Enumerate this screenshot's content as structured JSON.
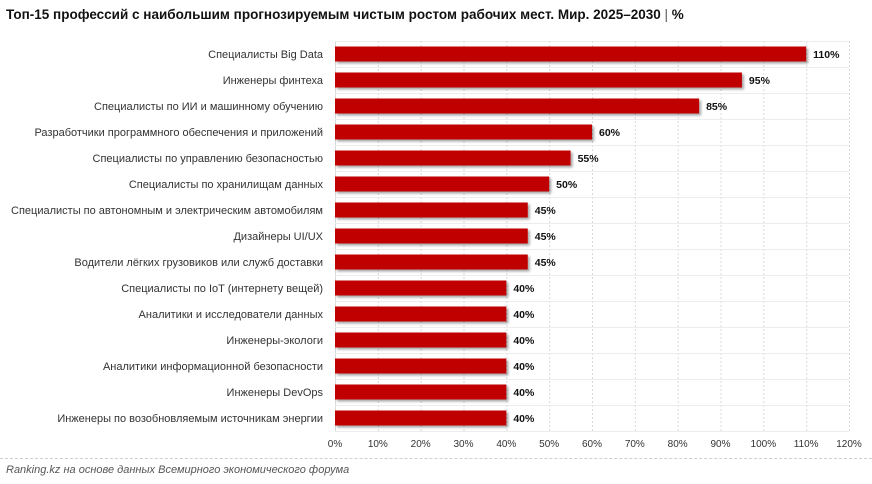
{
  "title": {
    "main": "Топ-15 профессий с наибольшим прогнозируемым чистым ростом рабочих мест. Мир. 2025–2030",
    "separator": "|",
    "unit": "%"
  },
  "source": "Ranking.kz на основе данных Всемирного экономического форума",
  "colors": {
    "bar": "#c00000",
    "grid": "#d9d9d9",
    "label": "#333333"
  },
  "chart_data": {
    "type": "bar",
    "orientation": "horizontal",
    "categories": [
      "Специалисты Big Data",
      "Инженеры финтеха",
      "Специалисты по ИИ и машинному обучению",
      "Разработчики программного обеспечения и приложений",
      "Специалисты по управлению безопасностью",
      "Специалисты по хранилищам данных",
      "Специалисты по автономным и электрическим автомобилям",
      "Дизайнеры UI/UX",
      "Водители лёгких грузовиков или служб доставки",
      "Специалисты по IoT (интернету вещей)",
      "Аналитики и исследователи данных",
      "Инженеры-экологи",
      "Аналитики информационной безопасности",
      "Инженеры DevOps",
      "Инженеры по возобновляемым источникам энергии"
    ],
    "values": [
      110,
      95,
      85,
      60,
      55,
      50,
      45,
      45,
      45,
      40,
      40,
      40,
      40,
      40,
      40
    ],
    "value_labels": [
      "110%",
      "95%",
      "85%",
      "60%",
      "55%",
      "50%",
      "45%",
      "45%",
      "45%",
      "40%",
      "40%",
      "40%",
      "40%",
      "40%",
      "40%"
    ],
    "xlim": [
      0,
      120
    ],
    "x_ticks": [
      0,
      10,
      20,
      30,
      40,
      50,
      60,
      70,
      80,
      90,
      100,
      110,
      120
    ],
    "x_tick_labels": [
      "0%",
      "10%",
      "20%",
      "30%",
      "40%",
      "50%",
      "60%",
      "70%",
      "80%",
      "90%",
      "100%",
      "110%",
      "120%"
    ],
    "grid": true,
    "legend": "none"
  }
}
